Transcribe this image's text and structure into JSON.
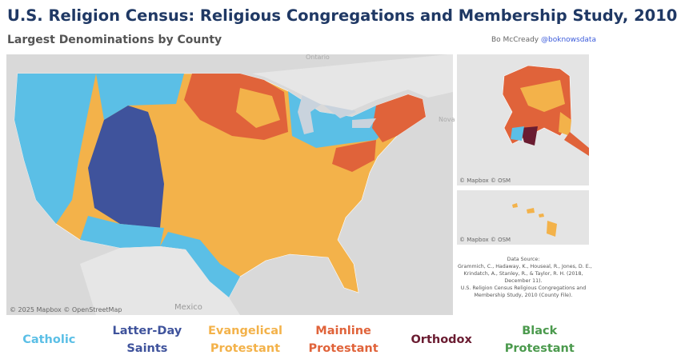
{
  "header": {
    "title": "U.S. Religion Census: Religious Congregations and Membership Study, 2010",
    "subtitle": "Largest Denominations by County",
    "author": "Bo McCready",
    "handle": "@boknowsdata"
  },
  "main_map": {
    "labels": [
      "Ontario",
      "Nova",
      "Mexico"
    ],
    "attribution": "© 2025 Mapbox © OpenStreetMap"
  },
  "alaska_map": {
    "attribution": "© Mapbox © OSM"
  },
  "hawaii_map": {
    "attribution": "© Mapbox © OSM"
  },
  "source": {
    "lines": [
      "Data Source:",
      "Grammich, C., Hadaway, K., Houseal, R., Jones, D. E.,",
      "Krindatch, A., Stanley, R., & Taylor, R. H. (2018,",
      "December 11).",
      "U.S. Religion Census Religious Congregations and",
      "Membership Study, 2010 (County File)."
    ]
  },
  "legend": [
    {
      "label": "Catholic",
      "color": "#5bbfe6"
    },
    {
      "label": "Latter-Day Saints",
      "color": "#3f539c"
    },
    {
      "label": "Evangelical Protestant",
      "color": "#f3b24a"
    },
    {
      "label": "Mainline Protestant",
      "color": "#e0633a"
    },
    {
      "label": "Orthodox",
      "color": "#6a1c31"
    },
    {
      "label": "Black Protestant",
      "color": "#4b9a4d"
    }
  ]
}
